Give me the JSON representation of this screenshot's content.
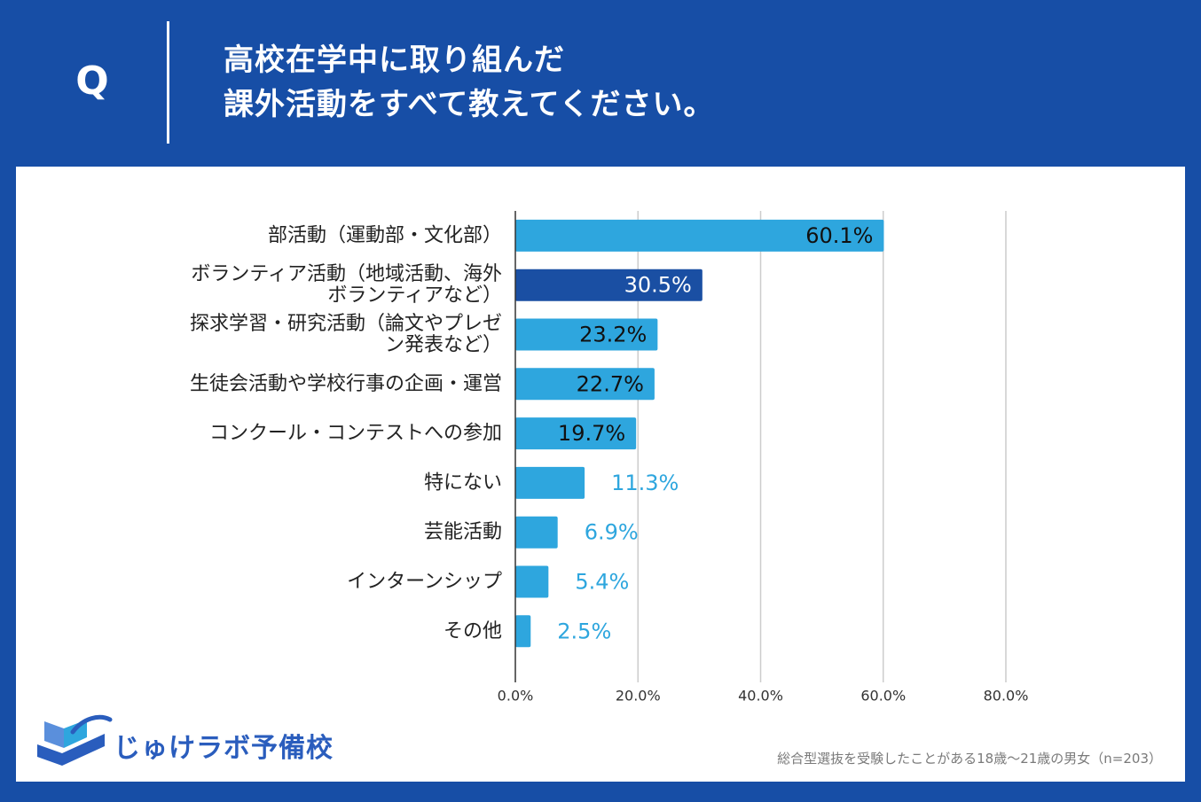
{
  "header": {
    "q_label": "Q",
    "question_line1": "高校在学中に取り組んだ",
    "question_line2": "課外活動をすべて教えてください。"
  },
  "brand": {
    "name": "じゅけラボ予備校"
  },
  "footnote": "総合型選抜を受験したことがある18歳～21歳の男女（n=203）",
  "colors": {
    "background": "#174ea6",
    "bar": "#2ea6de",
    "bar_highlight": "#1a4fa3",
    "grid": "#cccccc",
    "outside_label": "#2ea6de"
  },
  "chart_data": {
    "type": "bar",
    "orientation": "horizontal",
    "categories": [
      [
        "部活動（運動部・文化部）"
      ],
      [
        "ボランティア活動（地域活動、海外",
        "ボランティアなど）"
      ],
      [
        "探求学習・研究活動（論文やプレゼ",
        "ン発表など）"
      ],
      [
        "生徒会活動や学校行事の企画・運営"
      ],
      [
        "コンクール・コンテストへの参加"
      ],
      [
        "特にない"
      ],
      [
        "芸能活動"
      ],
      [
        "インターンシップ"
      ],
      [
        "その他"
      ]
    ],
    "values": [
      60.1,
      30.5,
      23.2,
      22.7,
      19.7,
      11.3,
      6.9,
      5.4,
      2.5
    ],
    "value_labels": [
      "60.1%",
      "30.5%",
      "23.2%",
      "22.7%",
      "19.7%",
      "11.3%",
      "6.9%",
      "5.4%",
      "2.5%"
    ],
    "highlight_index": 1,
    "xlim": [
      0,
      80
    ],
    "xticks": [
      0,
      20,
      40,
      60,
      80
    ],
    "xtick_labels": [
      "0.0%",
      "20.0%",
      "40.0%",
      "60.0%",
      "80.0%"
    ],
    "grid": true,
    "title": "",
    "xlabel": "",
    "ylabel": ""
  }
}
